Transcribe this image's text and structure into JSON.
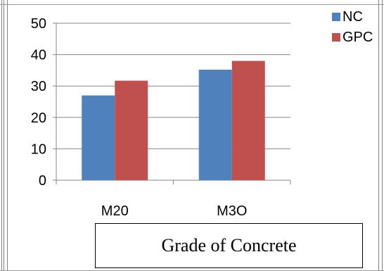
{
  "chart_data": {
    "type": "bar",
    "title": "",
    "xlabel": "Grade of Concrete",
    "ylabel": "",
    "ylim": [
      0,
      50
    ],
    "yticks": [
      0,
      10,
      20,
      30,
      40,
      50
    ],
    "categories": [
      "M20",
      "M3O"
    ],
    "series": [
      {
        "name": "NC",
        "values": [
          27,
          35.2
        ],
        "color": "#4F81BD"
      },
      {
        "name": "GPC",
        "values": [
          31.7,
          38
        ],
        "color": "#C0504D"
      }
    ],
    "grid": true,
    "legend": "top-right"
  }
}
